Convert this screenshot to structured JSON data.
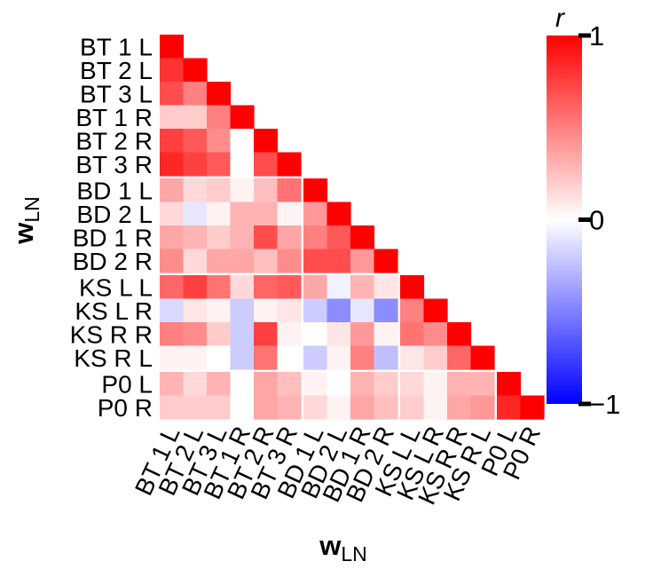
{
  "chart_data": {
    "type": "heatmap",
    "subtype": "lower-triangle correlation matrix",
    "xlabel_main": "w",
    "xlabel_sub": "LN",
    "ylabel_main": "w",
    "ylabel_sub": "LN",
    "categories": [
      "BT 1 L",
      "BT 2 L",
      "BT 3 L",
      "BT 1 R",
      "BT 2 R",
      "BT 3 R",
      "BD 1 L",
      "BD 2 L",
      "BD 1 R",
      "BD 2 R",
      "KS L L",
      "KS L R",
      "KS R R",
      "KS R L",
      "P0 L",
      "P0 R"
    ],
    "group_breaks_after": [
      5,
      9,
      13
    ],
    "matrix": [
      [
        1.0
      ],
      [
        0.8,
        1.0
      ],
      [
        0.7,
        0.5,
        1.0
      ],
      [
        0.2,
        0.2,
        0.5,
        1.0
      ],
      [
        0.75,
        0.65,
        0.45,
        0.0,
        1.0
      ],
      [
        0.85,
        0.75,
        0.65,
        0.0,
        0.7,
        1.0
      ],
      [
        0.35,
        0.15,
        0.2,
        0.05,
        0.25,
        0.55,
        1.0
      ],
      [
        0.15,
        -0.1,
        0.05,
        0.3,
        0.3,
        0.05,
        0.4,
        1.0
      ],
      [
        0.35,
        0.3,
        0.2,
        0.3,
        0.7,
        0.35,
        0.5,
        0.65,
        1.0
      ],
      [
        0.45,
        0.15,
        0.35,
        0.35,
        0.25,
        0.45,
        0.7,
        0.7,
        0.4,
        1.0
      ],
      [
        0.6,
        0.75,
        0.55,
        0.15,
        0.6,
        0.65,
        0.35,
        -0.05,
        0.3,
        0.1,
        1.0
      ],
      [
        -0.15,
        0.1,
        0.05,
        -0.2,
        0.05,
        0.1,
        -0.2,
        -0.45,
        -0.1,
        -0.45,
        0.5,
        1.0
      ],
      [
        0.5,
        0.45,
        0.2,
        -0.2,
        0.75,
        0.05,
        0.0,
        0.1,
        0.4,
        0.05,
        0.55,
        0.45,
        1.0
      ],
      [
        0.05,
        0.05,
        0.0,
        -0.2,
        0.55,
        0.0,
        -0.2,
        0.05,
        0.5,
        -0.25,
        0.1,
        0.2,
        0.6,
        1.0
      ],
      [
        0.3,
        0.15,
        0.3,
        0.0,
        0.35,
        0.25,
        0.05,
        0.0,
        0.3,
        0.2,
        0.15,
        0.05,
        0.3,
        0.3,
        1.0
      ],
      [
        0.2,
        0.2,
        0.2,
        0.0,
        0.35,
        0.3,
        0.15,
        0.05,
        0.35,
        0.25,
        0.2,
        0.05,
        0.35,
        0.4,
        0.85,
        1.0
      ]
    ],
    "colorbar": {
      "title": "r",
      "range": [
        -1,
        1
      ],
      "ticks": [
        -1,
        0,
        1
      ],
      "tick_labels": [
        "−1",
        "0",
        "1"
      ],
      "colors": {
        "low": "#0000ff",
        "mid": "#ffffff",
        "high": "#ff0000"
      }
    },
    "grid": false
  }
}
